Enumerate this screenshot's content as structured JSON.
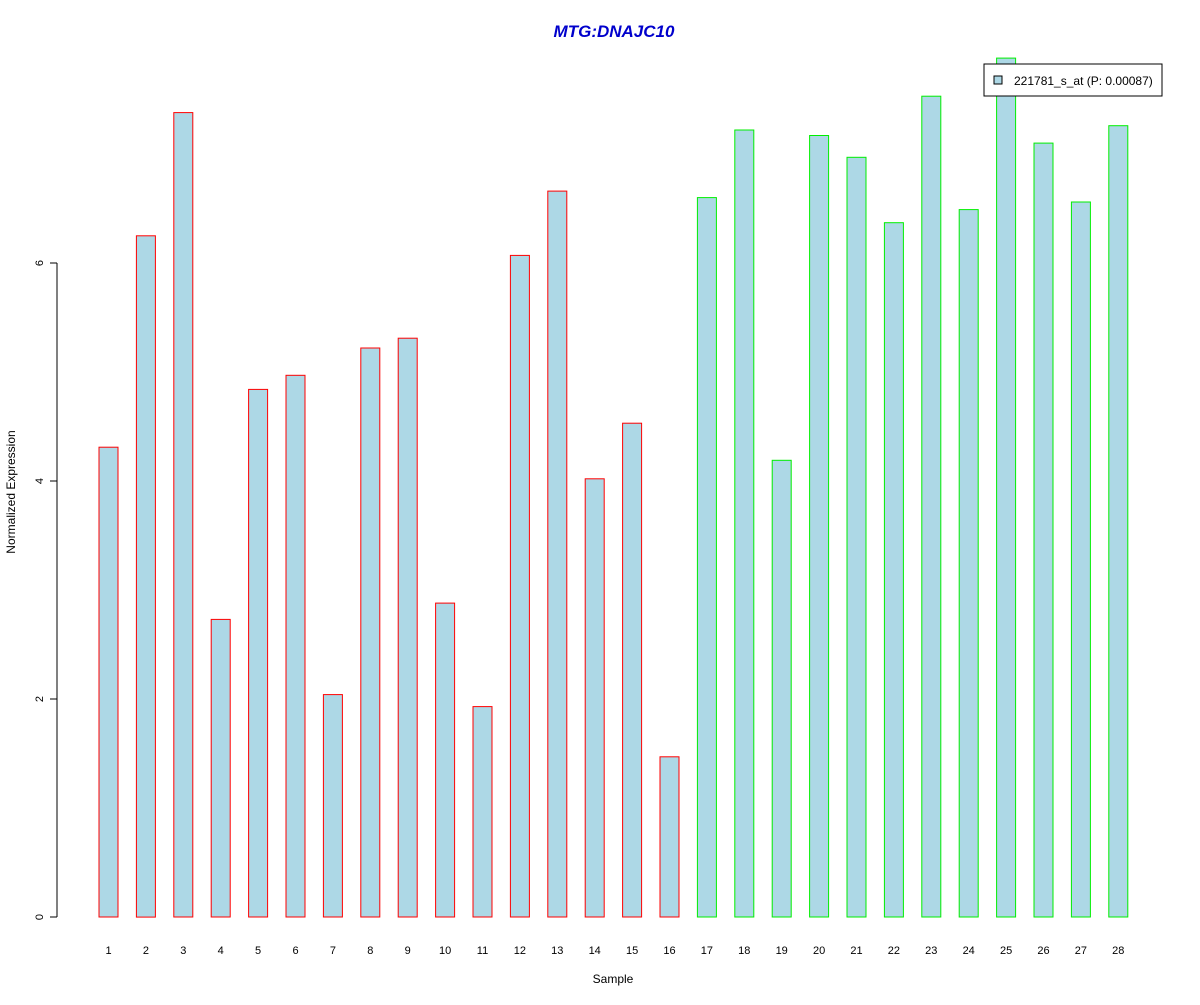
{
  "chart_data": {
    "type": "bar",
    "title": "MTG:DNAJC10",
    "xlabel": "Sample",
    "ylabel": "Normalized Expression",
    "ylim": [
      0,
      7.9
    ],
    "yticks": [
      0,
      2,
      4,
      6
    ],
    "ytick_labels": [
      "0",
      "2",
      "4",
      "6"
    ],
    "grid": false,
    "legend_position": "top-right",
    "categories": [
      "1",
      "2",
      "3",
      "4",
      "5",
      "6",
      "7",
      "8",
      "9",
      "10",
      "11",
      "12",
      "13",
      "14",
      "15",
      "16",
      "17",
      "18",
      "19",
      "20",
      "21",
      "22",
      "23",
      "24",
      "25",
      "26",
      "27",
      "28"
    ],
    "series": [
      {
        "name": "221781_s_at (P: 0.00087)",
        "values": [
          4.31,
          6.25,
          7.38,
          2.73,
          4.84,
          4.97,
          2.04,
          5.22,
          5.31,
          2.88,
          1.93,
          6.07,
          6.66,
          4.02,
          4.53,
          1.47,
          6.6,
          7.22,
          4.19,
          7.17,
          6.97,
          6.37,
          7.53,
          6.49,
          7.88,
          7.1,
          6.56,
          7.26
        ]
      }
    ],
    "groups": [
      {
        "samples": [
          1,
          16
        ],
        "border_color": "#ff0000"
      },
      {
        "samples": [
          17,
          28
        ],
        "border_color": "#00ee00"
      }
    ]
  },
  "colors": {
    "bar_fill": "#add8e6",
    "group1_border": "#ff0000",
    "group2_border": "#00ee00",
    "title": "#0000cc",
    "axis": "#000000"
  }
}
